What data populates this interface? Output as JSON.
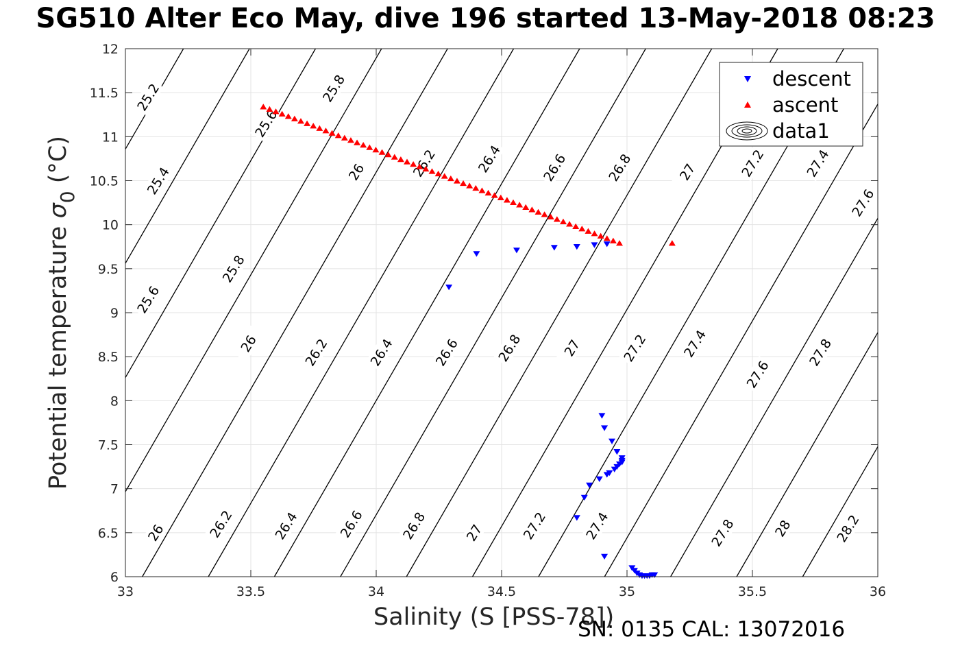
{
  "title": "SG510 Alter Eco May, dive 196 started 13-May-2018 08:23",
  "footer": "SN: 0135  CAL: 13072016",
  "chart_data": {
    "type": "scatter",
    "xlabel": "Salinity (S [PSS-78])",
    "ylabel_text": "Potential temperature ",
    "ylabel_symbol": "σ",
    "ylabel_subscript": "0",
    "ylabel_unit": " (°C)",
    "xlim": [
      33,
      36
    ],
    "ylim": [
      6,
      12
    ],
    "x_ticks": [
      "33",
      "33.5",
      "34",
      "34.5",
      "35",
      "35.5",
      "36"
    ],
    "y_ticks": [
      "6",
      "6.5",
      "7",
      "7.5",
      "8",
      "8.5",
      "9",
      "9.5",
      "10",
      "10.5",
      "11",
      "11.5",
      "12"
    ],
    "grid": true,
    "legend_position": "top-right",
    "contour_levels": [
      25.2,
      25.4,
      25.6,
      25.8,
      26,
      26.2,
      26.4,
      26.6,
      26.8,
      27,
      27.2,
      27.4,
      27.6,
      27.8,
      28,
      28.2
    ],
    "contour_labels": [
      {
        "text": "25.2",
        "x": 33.09,
        "y": 11.45
      },
      {
        "text": "25.4",
        "x": 33.13,
        "y": 10.5
      },
      {
        "text": "25.6",
        "x": 33.09,
        "y": 9.15
      },
      {
        "text": "25.8",
        "x": 33.43,
        "y": 9.5
      },
      {
        "text": "26",
        "x": 33.49,
        "y": 8.65
      },
      {
        "text": "26",
        "x": 33.12,
        "y": 6.5
      },
      {
        "text": "26.2",
        "x": 33.76,
        "y": 8.55
      },
      {
        "text": "26.2",
        "x": 33.38,
        "y": 6.6
      },
      {
        "text": "26.4",
        "x": 34.02,
        "y": 8.55
      },
      {
        "text": "26.4",
        "x": 33.64,
        "y": 6.58
      },
      {
        "text": "26.6",
        "x": 34.28,
        "y": 8.55
      },
      {
        "text": "26.6",
        "x": 33.9,
        "y": 6.6
      },
      {
        "text": "26.8",
        "x": 34.53,
        "y": 8.6
      },
      {
        "text": "26.8",
        "x": 34.15,
        "y": 6.58
      },
      {
        "text": "27",
        "x": 34.78,
        "y": 8.6
      },
      {
        "text": "27",
        "x": 34.39,
        "y": 6.5
      },
      {
        "text": "27.2",
        "x": 35.03,
        "y": 8.6
      },
      {
        "text": "27.2",
        "x": 34.63,
        "y": 6.58
      },
      {
        "text": "27.4",
        "x": 35.27,
        "y": 8.65
      },
      {
        "text": "27.4",
        "x": 34.88,
        "y": 6.58
      },
      {
        "text": "27.6",
        "x": 35.52,
        "y": 8.3
      },
      {
        "text": "27.8",
        "x": 35.77,
        "y": 8.55
      },
      {
        "text": "27.8",
        "x": 35.38,
        "y": 6.5
      },
      {
        "text": "28",
        "x": 35.62,
        "y": 6.55
      },
      {
        "text": "28.2",
        "x": 35.88,
        "y": 6.55
      },
      {
        "text": "25.6",
        "x": 33.56,
        "y": 11.15
      },
      {
        "text": "25.8",
        "x": 33.83,
        "y": 11.55
      },
      {
        "text": "26",
        "x": 33.92,
        "y": 10.6
      },
      {
        "text": "26.2",
        "x": 34.19,
        "y": 10.7
      },
      {
        "text": "26.4",
        "x": 34.45,
        "y": 10.75
      },
      {
        "text": "26.6",
        "x": 34.71,
        "y": 10.65
      },
      {
        "text": "26.8",
        "x": 34.97,
        "y": 10.65
      },
      {
        "text": "27",
        "x": 35.24,
        "y": 10.6
      },
      {
        "text": "27.2",
        "x": 35.5,
        "y": 10.7
      },
      {
        "text": "27.4",
        "x": 35.76,
        "y": 10.7
      },
      {
        "text": "27.6",
        "x": 35.94,
        "y": 10.25
      }
    ],
    "series": [
      {
        "name": "descent",
        "color": "#0000ff",
        "marker": "triangle-down",
        "points": [
          [
            34.29,
            9.29
          ],
          [
            34.4,
            9.67
          ],
          [
            34.56,
            9.71
          ],
          [
            34.71,
            9.74
          ],
          [
            34.8,
            9.75
          ],
          [
            34.87,
            9.77
          ],
          [
            34.92,
            9.78
          ],
          [
            34.9,
            7.83
          ],
          [
            34.91,
            7.69
          ],
          [
            34.94,
            7.54
          ],
          [
            34.96,
            7.42
          ],
          [
            34.98,
            7.35
          ],
          [
            34.98,
            7.32
          ],
          [
            34.98,
            7.3
          ],
          [
            34.97,
            7.28
          ],
          [
            34.96,
            7.25
          ],
          [
            34.95,
            7.22
          ],
          [
            34.93,
            7.18
          ],
          [
            34.92,
            7.16
          ],
          [
            34.89,
            7.11
          ],
          [
            34.85,
            7.04
          ],
          [
            34.83,
            6.9
          ],
          [
            34.8,
            6.67
          ],
          [
            34.91,
            6.23
          ],
          [
            35.02,
            6.1
          ],
          [
            35.03,
            6.07
          ],
          [
            35.04,
            6.04
          ],
          [
            35.05,
            6.02
          ],
          [
            35.06,
            6.01
          ],
          [
            35.07,
            6.01
          ],
          [
            35.08,
            6.01
          ],
          [
            35.09,
            6.01
          ],
          [
            35.1,
            6.02
          ],
          [
            35.11,
            6.02
          ]
        ]
      },
      {
        "name": "ascent",
        "color": "#ff0000",
        "marker": "triangle-up",
        "line_segment": {
          "from": [
            33.55,
            11.34
          ],
          "to": [
            34.97,
            9.79
          ],
          "count": 58
        },
        "points": [
          [
            35.18,
            9.79
          ]
        ]
      }
    ],
    "legend": [
      {
        "label": "descent",
        "marker": "triangle-down",
        "color": "#0000ff"
      },
      {
        "label": "ascent",
        "marker": "triangle-up",
        "color": "#ff0000"
      },
      {
        "label": "data1",
        "marker": "contour",
        "color": "#000000"
      }
    ]
  }
}
